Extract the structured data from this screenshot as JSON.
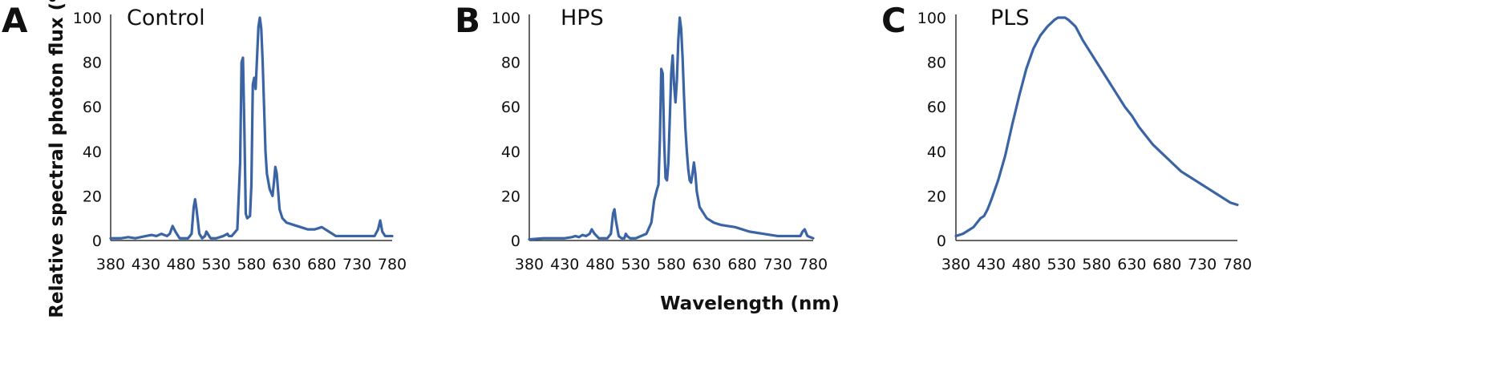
{
  "figure": {
    "ylabel": "Relative spectral photon flux (%)",
    "xlabel": "Wavelength (nm)",
    "line_color": "#3A64A4"
  },
  "chart_data": [
    {
      "type": "line",
      "panel": "A",
      "title": "Control",
      "xlabel": "",
      "ylabel": "Relative spectral photon flux (%)",
      "xlim": [
        380,
        780
      ],
      "ylim": [
        0,
        100
      ],
      "xticks": [
        380,
        430,
        480,
        530,
        580,
        630,
        680,
        730,
        780
      ],
      "yticks": [
        0,
        20,
        40,
        60,
        80,
        100
      ],
      "grid": false,
      "series": [
        {
          "x": [
            380,
            395,
            405,
            415,
            430,
            438,
            445,
            452,
            460,
            464,
            468,
            472,
            478,
            490,
            495,
            498,
            500,
            502,
            506,
            510,
            514,
            516,
            518,
            522,
            530,
            540,
            546,
            548,
            552,
            560,
            564,
            566,
            568,
            570,
            572,
            574,
            578,
            580,
            582,
            584,
            586,
            588,
            590,
            592,
            594,
            596,
            598,
            600,
            602,
            606,
            610,
            612,
            614,
            616,
            618,
            620,
            624,
            630,
            640,
            650,
            660,
            670,
            680,
            690,
            700,
            720,
            740,
            755,
            760,
            763,
            766,
            770,
            780
          ],
          "y": [
            1,
            1,
            1.5,
            1,
            2,
            2.5,
            2,
            3,
            2,
            3,
            6.5,
            4,
            1,
            1,
            3,
            15,
            18.5,
            14,
            3,
            1,
            2,
            4,
            3,
            1,
            1,
            2,
            3,
            2,
            2,
            5,
            35,
            80,
            82,
            50,
            12,
            10,
            11,
            25,
            70,
            73,
            68,
            82,
            96,
            100,
            95,
            80,
            60,
            40,
            30,
            23,
            20,
            26,
            33,
            30,
            22,
            14,
            10,
            8,
            7,
            6,
            5,
            5,
            6,
            4,
            2,
            2,
            2,
            2,
            5,
            9,
            4,
            2,
            2
          ]
        }
      ]
    },
    {
      "type": "line",
      "panel": "B",
      "title": "HPS",
      "xlabel": "Wavelength (nm)",
      "ylabel": "",
      "xlim": [
        380,
        780
      ],
      "ylim": [
        0,
        100
      ],
      "xticks": [
        380,
        430,
        480,
        530,
        580,
        630,
        680,
        730,
        780
      ],
      "yticks": [
        0,
        20,
        40,
        60,
        80,
        100
      ],
      "grid": false,
      "series": [
        {
          "x": [
            380,
            400,
            420,
            430,
            440,
            445,
            450,
            455,
            460,
            465,
            468,
            472,
            478,
            490,
            495,
            498,
            500,
            502,
            506,
            510,
            514,
            516,
            518,
            522,
            530,
            545,
            552,
            556,
            560,
            562,
            564,
            566,
            568,
            570,
            572,
            574,
            576,
            578,
            580,
            582,
            584,
            586,
            588,
            590,
            592,
            594,
            596,
            598,
            600,
            602,
            604,
            606,
            608,
            610,
            612,
            614,
            616,
            620,
            630,
            640,
            650,
            670,
            690,
            710,
            730,
            750,
            762,
            765,
            768,
            772,
            780
          ],
          "y": [
            0.5,
            1,
            1,
            1,
            1.5,
            2,
            1.5,
            2.5,
            2,
            3,
            5,
            3,
            1,
            1,
            3,
            12,
            14,
            9,
            2,
            1,
            1,
            3,
            2,
            1,
            1,
            3,
            8,
            18,
            23,
            25,
            45,
            77,
            75,
            45,
            28,
            27,
            35,
            55,
            75,
            83,
            70,
            62,
            72,
            90,
            100,
            95,
            82,
            65,
            50,
            40,
            32,
            27,
            26,
            30,
            35,
            30,
            22,
            15,
            10,
            8,
            7,
            6,
            4,
            3,
            2,
            2,
            2,
            4,
            5,
            2,
            1
          ]
        }
      ]
    },
    {
      "type": "line",
      "panel": "C",
      "title": "PLS",
      "xlabel": "",
      "ylabel": "",
      "xlim": [
        380,
        780
      ],
      "ylim": [
        0,
        100
      ],
      "xticks": [
        380,
        430,
        480,
        530,
        580,
        630,
        680,
        730,
        780
      ],
      "yticks": [
        0,
        20,
        40,
        60,
        80,
        100
      ],
      "grid": false,
      "series": [
        {
          "x": [
            380,
            390,
            400,
            405,
            410,
            415,
            420,
            425,
            430,
            440,
            450,
            460,
            470,
            480,
            490,
            500,
            510,
            520,
            525,
            530,
            535,
            540,
            550,
            560,
            570,
            580,
            590,
            600,
            610,
            620,
            630,
            640,
            650,
            660,
            670,
            680,
            690,
            700,
            710,
            720,
            730,
            740,
            750,
            760,
            770,
            780
          ],
          "y": [
            2,
            3,
            5,
            6,
            8,
            10,
            11,
            14,
            18,
            27,
            38,
            52,
            65,
            77,
            86,
            92,
            96,
            99,
            100,
            100,
            100,
            99,
            96,
            90,
            85,
            80,
            75,
            70,
            65,
            60,
            56,
            51,
            47,
            43,
            40,
            37,
            34,
            31,
            29,
            27,
            25,
            23,
            21,
            19,
            17,
            16
          ]
        }
      ]
    }
  ]
}
